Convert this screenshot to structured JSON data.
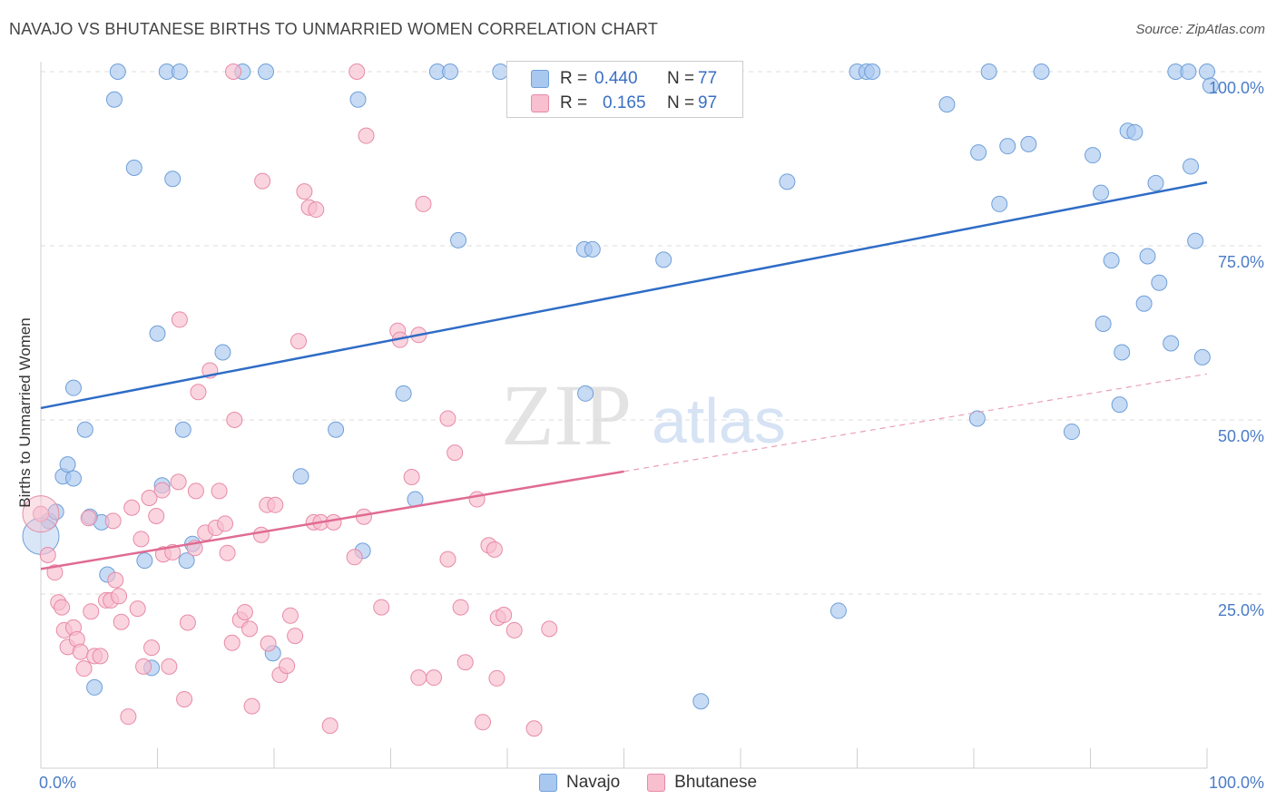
{
  "title": "NAVAJO VS BHUTANESE BIRTHS TO UNMARRIED WOMEN CORRELATION CHART",
  "source": "Source: ZipAtlas.com",
  "watermark": {
    "zip": "ZIP",
    "atlas": "atlas"
  },
  "legend": {
    "rows": [
      {
        "r_label": "R =",
        "r_value": "0.440",
        "n_label": "N =",
        "n_value": "77",
        "color": "#a9c8ef",
        "border": "#6f9fd8"
      },
      {
        "r_label": "R =",
        "r_value": "0.165",
        "n_label": "N =",
        "n_value": "97",
        "color": "#f7bfcf",
        "border": "#e88aa6"
      }
    ]
  },
  "bottom_legend": [
    "Navajo",
    "Bhutanese"
  ],
  "chart_data": {
    "type": "scatter",
    "title": "NAVAJO VS BHUTANESE BIRTHS TO UNMARRIED WOMEN CORRELATION CHART",
    "xlabel": "",
    "ylabel": "Births to Unmarried Women",
    "xlim": [
      0,
      100
    ],
    "ylim": [
      0,
      100
    ],
    "x_tick_labels": [
      "0.0%",
      "100.0%"
    ],
    "y_tick_labels": [
      "25.0%",
      "50.0%",
      "75.0%",
      "100.0%"
    ],
    "y_ticks": [
      25,
      50,
      75,
      100
    ],
    "grid": true,
    "legend_position": "top-center",
    "series": [
      {
        "name": "Navajo",
        "color": "#a9c8ef",
        "stroke": "#6f9fd8",
        "trend_color": "#2f6cc6",
        "trend": {
          "x0": 0,
          "y0": 51.7,
          "x1": 100,
          "y1": 84.1
        },
        "points": [
          [
            0.7,
            35.5
          ],
          [
            1.3,
            36.8
          ],
          [
            1.9,
            41.9
          ],
          [
            2.3,
            43.6
          ],
          [
            2.8,
            41.6
          ],
          [
            2.8,
            54.6
          ],
          [
            3.8,
            48.6
          ],
          [
            4.2,
            36.1
          ],
          [
            4.6,
            11.6
          ],
          [
            5.2,
            35.3
          ],
          [
            5.7,
            27.8
          ],
          [
            6.3,
            96.0
          ],
          [
            6.6,
            100
          ],
          [
            8.0,
            86.2
          ],
          [
            8.9,
            29.8
          ],
          [
            9.5,
            14.4
          ],
          [
            10.0,
            62.4
          ],
          [
            10.4,
            40.6
          ],
          [
            10.8,
            100
          ],
          [
            11.3,
            84.6
          ],
          [
            11.9,
            100
          ],
          [
            12.2,
            48.6
          ],
          [
            12.5,
            29.8
          ],
          [
            13.0,
            32.2
          ],
          [
            15.6,
            59.7
          ],
          [
            17.3,
            100
          ],
          [
            19.3,
            100
          ],
          [
            19.9,
            16.5
          ],
          [
            22.3,
            41.9
          ],
          [
            25.3,
            48.6
          ],
          [
            27.2,
            96.0
          ],
          [
            27.6,
            31.2
          ],
          [
            31.1,
            53.8
          ],
          [
            32.1,
            38.6
          ],
          [
            34.0,
            100
          ],
          [
            35.1,
            100
          ],
          [
            35.8,
            75.8
          ],
          [
            39.4,
            100
          ],
          [
            46.7,
            53.8
          ],
          [
            46.6,
            74.5
          ],
          [
            47.3,
            74.5
          ],
          [
            53.4,
            73.0
          ],
          [
            56.6,
            9.6
          ],
          [
            64.0,
            84.2
          ],
          [
            68.4,
            22.6
          ],
          [
            70.0,
            100
          ],
          [
            70.8,
            100
          ],
          [
            71.3,
            100
          ],
          [
            77.7,
            95.3
          ],
          [
            80.3,
            50.2
          ],
          [
            80.4,
            88.4
          ],
          [
            81.3,
            100
          ],
          [
            82.2,
            81.0
          ],
          [
            82.9,
            89.3
          ],
          [
            84.7,
            89.6
          ],
          [
            85.8,
            100
          ],
          [
            88.4,
            48.3
          ],
          [
            90.2,
            88.0
          ],
          [
            90.9,
            82.6
          ],
          [
            91.1,
            63.8
          ],
          [
            91.8,
            72.9
          ],
          [
            92.5,
            52.2
          ],
          [
            92.7,
            59.7
          ],
          [
            93.2,
            91.5
          ],
          [
            93.8,
            91.3
          ],
          [
            94.6,
            66.7
          ],
          [
            94.9,
            73.5
          ],
          [
            95.6,
            84.0
          ],
          [
            95.9,
            69.7
          ],
          [
            96.9,
            61.0
          ],
          [
            97.3,
            100
          ],
          [
            98.4,
            100
          ],
          [
            98.6,
            86.4
          ],
          [
            99.0,
            75.7
          ],
          [
            99.6,
            59.0
          ],
          [
            100.0,
            100
          ],
          [
            100.3,
            98.0
          ]
        ]
      },
      {
        "name": "Bhutanese",
        "color": "#f7bfcf",
        "stroke": "#e88aa6",
        "trend_color": "#e06b93",
        "trend": {
          "x0": 0,
          "y0": 28.6,
          "x1": 50,
          "y1": 42.6
        },
        "trend_ext": {
          "x0": 50,
          "y0": 42.6,
          "x1": 100,
          "y1": 56.6
        },
        "points": [
          [
            0.6,
            30.6
          ],
          [
            1.2,
            28.1
          ],
          [
            1.5,
            23.8
          ],
          [
            1.8,
            23.1
          ],
          [
            2.0,
            19.8
          ],
          [
            2.3,
            17.4
          ],
          [
            2.8,
            20.2
          ],
          [
            3.1,
            18.5
          ],
          [
            3.4,
            16.7
          ],
          [
            3.7,
            14.3
          ],
          [
            4.1,
            35.9
          ],
          [
            4.3,
            22.5
          ],
          [
            4.6,
            16.1
          ],
          [
            5.1,
            16.1
          ],
          [
            5.6,
            24.1
          ],
          [
            6.0,
            24.1
          ],
          [
            6.2,
            35.5
          ],
          [
            6.4,
            27.0
          ],
          [
            6.7,
            24.7
          ],
          [
            6.9,
            21.0
          ],
          [
            7.5,
            7.4
          ],
          [
            7.8,
            37.4
          ],
          [
            8.3,
            22.9
          ],
          [
            8.6,
            32.9
          ],
          [
            8.8,
            14.6
          ],
          [
            9.3,
            38.8
          ],
          [
            9.5,
            17.3
          ],
          [
            9.9,
            36.2
          ],
          [
            10.4,
            39.9
          ],
          [
            10.5,
            30.7
          ],
          [
            11.0,
            14.6
          ],
          [
            11.3,
            31.0
          ],
          [
            11.8,
            41.1
          ],
          [
            11.9,
            64.4
          ],
          [
            12.3,
            9.9
          ],
          [
            12.6,
            20.9
          ],
          [
            13.2,
            31.6
          ],
          [
            13.3,
            39.8
          ],
          [
            13.5,
            54.0
          ],
          [
            14.1,
            33.8
          ],
          [
            14.5,
            57.1
          ],
          [
            15.0,
            34.5
          ],
          [
            15.3,
            39.8
          ],
          [
            15.8,
            35.1
          ],
          [
            16.0,
            30.9
          ],
          [
            16.4,
            18.0
          ],
          [
            16.6,
            50.0
          ],
          [
            17.1,
            21.3
          ],
          [
            17.5,
            22.4
          ],
          [
            17.9,
            20.0
          ],
          [
            18.1,
            8.9
          ],
          [
            18.9,
            33.5
          ],
          [
            19.0,
            84.3
          ],
          [
            19.4,
            37.8
          ],
          [
            19.5,
            17.9
          ],
          [
            20.1,
            37.8
          ],
          [
            20.5,
            13.4
          ],
          [
            21.1,
            14.7
          ],
          [
            21.4,
            21.9
          ],
          [
            21.8,
            19.0
          ],
          [
            22.1,
            61.3
          ],
          [
            22.6,
            82.8
          ],
          [
            23.0,
            80.5
          ],
          [
            23.4,
            35.3
          ],
          [
            23.6,
            80.2
          ],
          [
            24.0,
            35.3
          ],
          [
            24.8,
            6.1
          ],
          [
            25.1,
            35.3
          ],
          [
            26.9,
            30.3
          ],
          [
            27.1,
            100
          ],
          [
            27.7,
            36.1
          ],
          [
            27.9,
            90.8
          ],
          [
            29.2,
            23.1
          ],
          [
            30.6,
            62.8
          ],
          [
            30.8,
            61.5
          ],
          [
            31.8,
            41.8
          ],
          [
            32.4,
            62.2
          ],
          [
            32.4,
            13.0
          ],
          [
            32.8,
            81.0
          ],
          [
            33.7,
            13.0
          ],
          [
            34.9,
            50.2
          ],
          [
            34.9,
            30.0
          ],
          [
            35.5,
            45.3
          ],
          [
            36.0,
            23.1
          ],
          [
            36.4,
            15.2
          ],
          [
            37.4,
            38.6
          ],
          [
            37.9,
            6.6
          ],
          [
            38.4,
            32.0
          ],
          [
            38.9,
            31.4
          ],
          [
            39.1,
            12.9
          ],
          [
            39.2,
            21.6
          ],
          [
            39.7,
            22.0
          ],
          [
            40.6,
            19.8
          ],
          [
            42.3,
            5.7
          ],
          [
            43.6,
            20.0
          ],
          [
            16.5,
            100
          ],
          [
            0.0,
            36.5
          ]
        ]
      }
    ]
  }
}
